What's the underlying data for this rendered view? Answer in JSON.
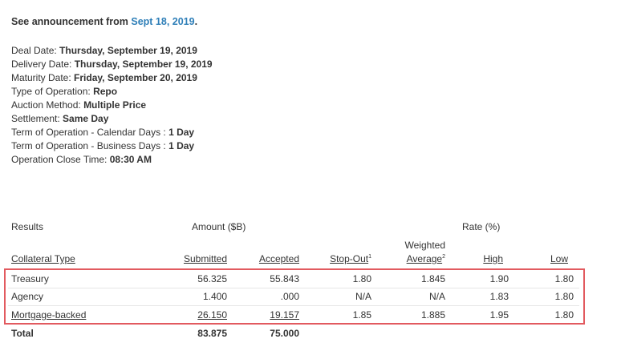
{
  "announcement": {
    "prefix": "See announcement from",
    "link": "Sept 18, 2019",
    "suffix": "."
  },
  "details": [
    {
      "label": "Deal Date: ",
      "value": "Thursday, September 19, 2019"
    },
    {
      "label": "Delivery Date: ",
      "value": "Thursday, September 19, 2019"
    },
    {
      "label": "Maturity Date: ",
      "value": "Friday, September 20, 2019"
    },
    {
      "label": "Type of Operation: ",
      "value": "Repo"
    },
    {
      "label": "Auction Method: ",
      "value": "Multiple Price"
    },
    {
      "label": "Settlement: ",
      "value": "Same Day"
    },
    {
      "label": "Term of Operation - Calendar Days : ",
      "value": "1 Day"
    },
    {
      "label": "Term of Operation - Business Days : ",
      "value": "1 Day"
    },
    {
      "label": "Operation Close Time: ",
      "value": "08:30 AM"
    }
  ],
  "results": {
    "section_label": "Results",
    "amount_label": "Amount ($B)",
    "rate_label": "Rate (%)",
    "headers": {
      "collateral_type": "Collateral Type",
      "submitted": "Submitted",
      "accepted": "Accepted",
      "stop_out": "Stop-Out",
      "stop_out_sup": "1",
      "weighted": "Weighted",
      "average": "Average",
      "average_sup": "2",
      "high": "High",
      "low": "Low"
    },
    "rows": [
      {
        "type": "Treasury",
        "submitted": "56.325",
        "accepted": "55.843",
        "stop_out": "1.80",
        "weighted_average": "1.845",
        "high": "1.90",
        "low": "1.80"
      },
      {
        "type": "Agency",
        "submitted": "1.400",
        "accepted": ".000",
        "stop_out": "N/A",
        "weighted_average": "N/A",
        "high": "1.83",
        "low": "1.80"
      },
      {
        "type": "Mortgage-backed",
        "submitted": "26.150",
        "accepted": "19.157",
        "stop_out": "1.85",
        "weighted_average": "1.885",
        "high": "1.95",
        "low": "1.80"
      }
    ],
    "total": {
      "label": "Total",
      "submitted": "83.875",
      "accepted": "75.000"
    }
  },
  "colors": {
    "link": "#2f7fb8",
    "highlight_border": "#e25a5f"
  }
}
